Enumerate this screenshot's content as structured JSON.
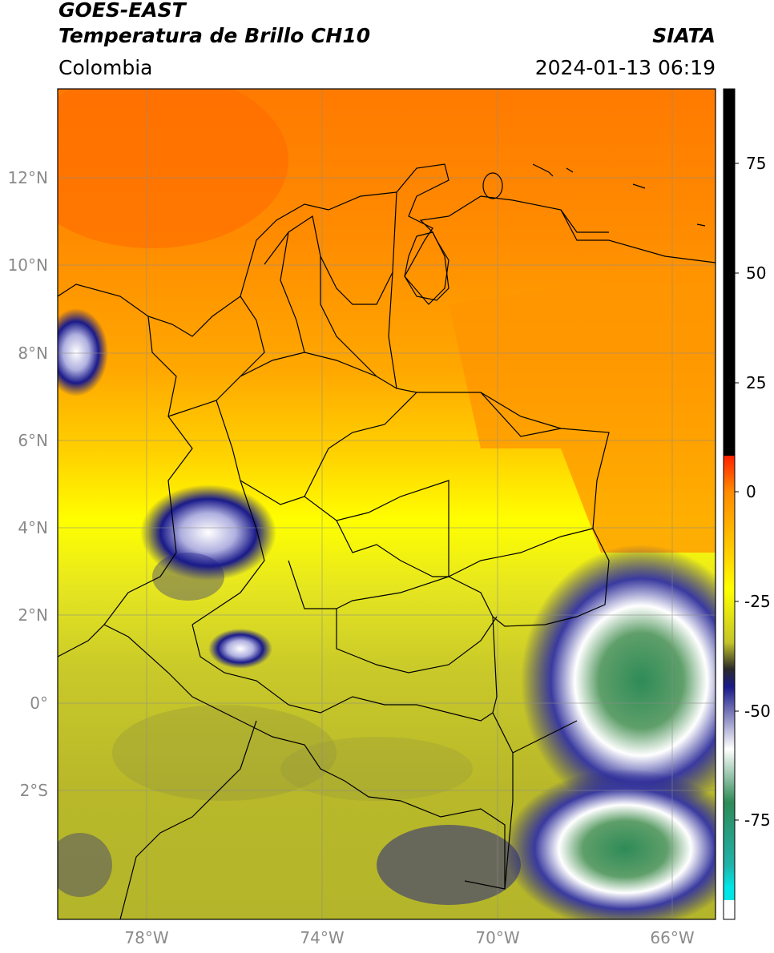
{
  "header": {
    "title_line1": "GOES-EAST",
    "title_line2": "Temperatura de Brillo CH10",
    "region": "Colombia",
    "source": "SIATA",
    "datetime": "2024-01-13 06:19"
  },
  "map": {
    "lat_labels": [
      "12°N",
      "10°N",
      "8°N",
      "6°N",
      "4°N",
      "2°N",
      "0°",
      "2°S"
    ],
    "lon_labels": [
      "78°W",
      "74°W",
      "70°W",
      "66°W"
    ]
  },
  "colorbar": {
    "tick_labels": [
      "75",
      "50",
      "25",
      "0",
      "-25",
      "-50",
      "-75"
    ],
    "range": [
      -95,
      90
    ],
    "units_shown": "none"
  },
  "colors": {
    "warm_orange": "#ff7a00",
    "yellow": "#ffff00",
    "olive": "#b6b82a",
    "navy": "#1a1a8a",
    "green": "#2e8b57",
    "cyan": "#00e5e5",
    "red": "#ff2000"
  }
}
